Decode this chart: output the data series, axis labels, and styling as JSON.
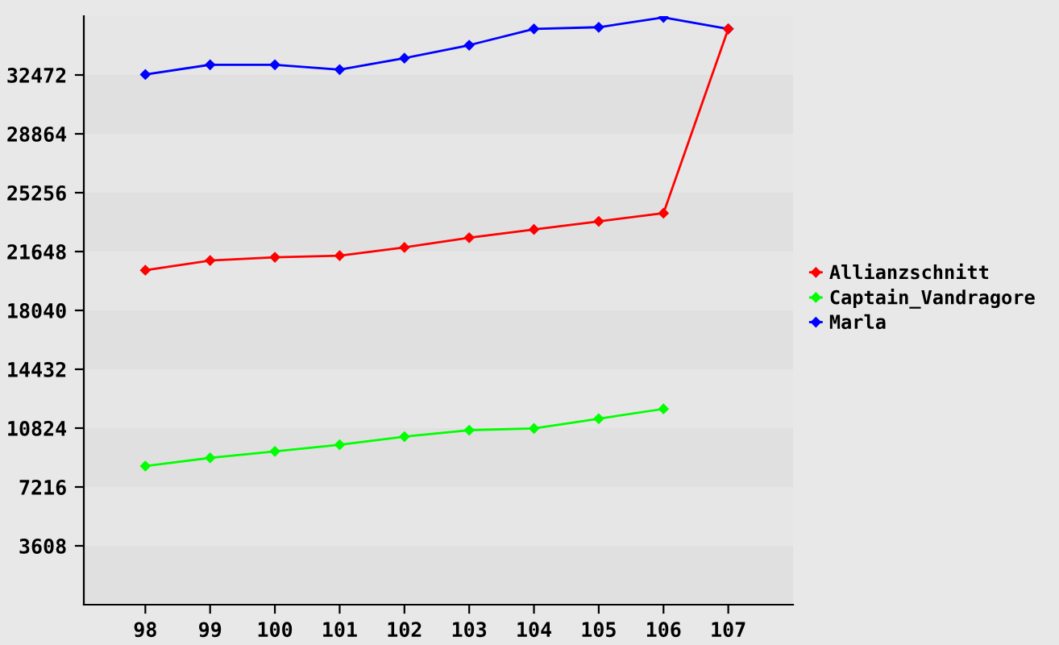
{
  "chart_data": {
    "type": "line",
    "categories": [
      "98",
      "99",
      "100",
      "101",
      "102",
      "103",
      "104",
      "105",
      "106",
      "107"
    ],
    "series": [
      {
        "name": "Allianzschnitt",
        "color": "#ff0000",
        "values": [
          20500,
          21100,
          21300,
          21400,
          21900,
          22500,
          23000,
          23500,
          24000,
          35300
        ]
      },
      {
        "name": "Captain_Vandragore",
        "color": "#00ff00",
        "values": [
          8500,
          9000,
          9400,
          9800,
          10300,
          10700,
          10800,
          11400,
          12000,
          null
        ]
      },
      {
        "name": "Marla",
        "color": "#0000ff",
        "values": [
          32500,
          33100,
          33100,
          32800,
          33500,
          34300,
          35300,
          35400,
          36000,
          35300
        ]
      }
    ],
    "ylim": [
      0,
      36080
    ],
    "yticks": [
      3608,
      7216,
      10824,
      14432,
      18040,
      21648,
      25256,
      28864,
      32472
    ],
    "bands": [
      {
        "axis": "y",
        "from": 0,
        "to": 3608,
        "color": "#e0e0e0"
      },
      {
        "axis": "y",
        "from": 7216,
        "to": 10824,
        "color": "#e0e0e0"
      },
      {
        "axis": "y",
        "from": 14432,
        "to": 18040,
        "color": "#e0e0e0"
      },
      {
        "axis": "y",
        "from": 21648,
        "to": 25256,
        "color": "#e0e0e0"
      },
      {
        "axis": "y",
        "from": 28864,
        "to": 32472,
        "color": "#e0e0e0"
      }
    ],
    "legend": "right",
    "marker": "diamond",
    "line_style": "solid"
  }
}
